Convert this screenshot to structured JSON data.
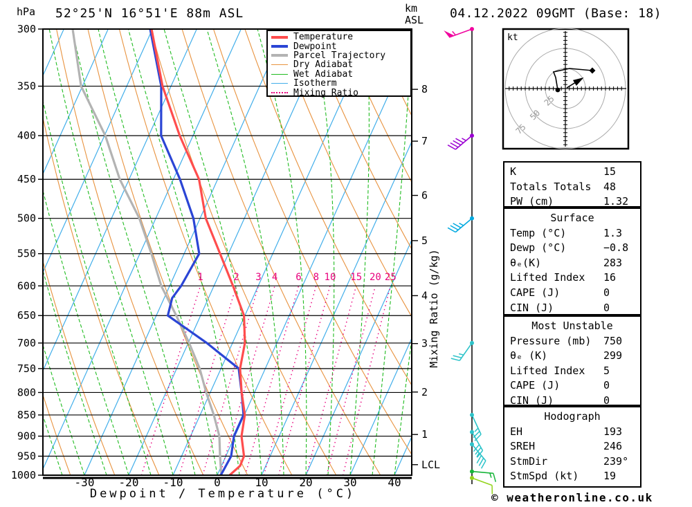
{
  "header": {
    "pressure_unit": "hPa",
    "station_title": "52°25'N 16°51'E 88m ASL",
    "altitude_unit_line1": "km",
    "altitude_unit_line2": "ASL",
    "datetime_title": "04.12.2022 09GMT (Base: 18)"
  },
  "colors": {
    "temperature": "#ff4d4d",
    "dewpoint": "#2b45d5",
    "parcel": "#b3b3b3",
    "dry_adiabat": "#e8923e",
    "wet_adiabat": "#1fbb1f",
    "isotherm": "#41aeea",
    "mixing_ratio": "#e8007d",
    "grid": "#000000",
    "ring": "#aaaaaa"
  },
  "legend": {
    "items": [
      {
        "label": "Temperature",
        "color": "#ff4d4d",
        "weight": 4,
        "dash": ""
      },
      {
        "label": "Dewpoint",
        "color": "#2b45d5",
        "weight": 4,
        "dash": ""
      },
      {
        "label": "Parcel Trajectory",
        "color": "#b3b3b3",
        "weight": 4,
        "dash": ""
      },
      {
        "label": "Dry Adiabat",
        "color": "#e8923e",
        "weight": 1.5,
        "dash": ""
      },
      {
        "label": "Wet Adiabat",
        "color": "#1fbb1f",
        "weight": 1.5,
        "dash": ""
      },
      {
        "label": "Isotherm",
        "color": "#41aeea",
        "weight": 1.5,
        "dash": ""
      },
      {
        "label": "Mixing Ratio",
        "color": "#e8007d",
        "weight": 1.5,
        "dash": "2,4"
      }
    ]
  },
  "axes": {
    "xlabel": "Dewpoint / Temperature (°C)",
    "mixing_ratio_axis_label": "Mixing Ratio (g/kg)",
    "lcl_label": "LCL"
  },
  "footer": {
    "copyright": "© weatheronline.co.uk"
  },
  "stats": {
    "tables": [
      {
        "name": "indices",
        "title": null,
        "rows": [
          {
            "label": "K",
            "value": "15"
          },
          {
            "label": "Totals Totals",
            "value": "48"
          },
          {
            "label": "PW (cm)",
            "value": "1.32"
          }
        ]
      },
      {
        "name": "surface",
        "title": "Surface",
        "rows": [
          {
            "label": "Temp (°C)",
            "value": "1.3"
          },
          {
            "label": "Dewp (°C)",
            "value": "−0.8"
          },
          {
            "label": "θₑ(K)",
            "value": "283"
          },
          {
            "label": "Lifted Index",
            "value": "16"
          },
          {
            "label": "CAPE (J)",
            "value": "0"
          },
          {
            "label": "CIN (J)",
            "value": "0"
          }
        ]
      },
      {
        "name": "most_unstable",
        "title": "Most Unstable",
        "rows": [
          {
            "label": "Pressure (mb)",
            "value": "750"
          },
          {
            "label": "θₑ (K)",
            "value": "299"
          },
          {
            "label": "Lifted Index",
            "value": "5"
          },
          {
            "label": "CAPE (J)",
            "value": "0"
          },
          {
            "label": "CIN (J)",
            "value": "0"
          }
        ]
      },
      {
        "name": "hodograph",
        "title": "Hodograph",
        "rows": [
          {
            "label": "EH",
            "value": "193"
          },
          {
            "label": "SREH",
            "value": "246"
          },
          {
            "label": "StmDir",
            "value": "239°"
          },
          {
            "label": "StmSpd (kt)",
            "value": "19"
          }
        ]
      }
    ]
  },
  "chart_data": {
    "type": "line",
    "subtype": "skewt_logp_sounding",
    "title": "52°25'N 16°51'E 88m ASL — 04.12.2022 09GMT (Base: 18)",
    "xlabel": "Dewpoint / Temperature (°C)",
    "x_ticks_c": [
      -30,
      -20,
      -10,
      0,
      10,
      20,
      30,
      40
    ],
    "pressure_ticks_hpa": [
      300,
      350,
      400,
      450,
      500,
      550,
      600,
      650,
      700,
      750,
      800,
      850,
      900,
      950,
      1000
    ],
    "pressure_range_hpa": [
      300,
      1000
    ],
    "temperature_profile_p_t": [
      [
        1000,
        2.8
      ],
      [
        975,
        4.2
      ],
      [
        950,
        4.1
      ],
      [
        900,
        1.5
      ],
      [
        850,
        0.1
      ],
      [
        800,
        -2.9
      ],
      [
        750,
        -5.7
      ],
      [
        700,
        -7.2
      ],
      [
        650,
        -10.2
      ],
      [
        600,
        -15.7
      ],
      [
        550,
        -21.9
      ],
      [
        500,
        -28.7
      ],
      [
        450,
        -34.2
      ],
      [
        400,
        -43.0
      ],
      [
        350,
        -51.9
      ],
      [
        300,
        -60.2
      ]
    ],
    "dewpoint_profile_p_t": [
      [
        1000,
        0.8
      ],
      [
        950,
        1.2
      ],
      [
        900,
        -0.2
      ],
      [
        850,
        -0.2
      ],
      [
        800,
        -2.9
      ],
      [
        750,
        -6.0
      ],
      [
        700,
        -15.8
      ],
      [
        650,
        -27.4
      ],
      [
        620,
        -28.2
      ],
      [
        600,
        -27.4
      ],
      [
        550,
        -26.6
      ],
      [
        500,
        -31.5
      ],
      [
        450,
        -38.5
      ],
      [
        400,
        -47.2
      ],
      [
        350,
        -52.2
      ],
      [
        300,
        -60.5
      ]
    ],
    "parcel_profile_p_t": [
      [
        1000,
        0.9
      ],
      [
        950,
        -1.3
      ],
      [
        900,
        -3.5
      ],
      [
        850,
        -6.9
      ],
      [
        800,
        -10.9
      ],
      [
        750,
        -14.8
      ],
      [
        700,
        -19.8
      ],
      [
        650,
        -25.5
      ],
      [
        600,
        -31.9
      ],
      [
        550,
        -37.4
      ],
      [
        500,
        -43.7
      ],
      [
        450,
        -52.1
      ],
      [
        400,
        -59.8
      ],
      [
        350,
        -70.3
      ],
      [
        300,
        -78.0
      ]
    ],
    "mixing_ratio_lines_gkg": [
      1,
      2,
      3,
      4,
      6,
      8,
      10,
      15,
      20,
      25
    ],
    "isotherm_step_c": 10,
    "dry_adiabat_step_k": 10,
    "wet_adiabat_step_c": 5,
    "km_asl_ticks": [
      {
        "label": "8",
        "p_hpa": 353
      },
      {
        "label": "7",
        "p_hpa": 406
      },
      {
        "label": "6",
        "p_hpa": 470
      },
      {
        "label": "5",
        "p_hpa": 531
      },
      {
        "label": "4",
        "p_hpa": 616
      },
      {
        "label": "3",
        "p_hpa": 701
      },
      {
        "label": "2",
        "p_hpa": 799
      },
      {
        "label": "1",
        "p_hpa": 896
      },
      {
        "label": "LCL",
        "p_hpa": 972
      }
    ],
    "wind_barbs": [
      {
        "p_hpa": 300,
        "speed_kt": 55,
        "dir_from_deg": 250,
        "color": "#f0059f"
      },
      {
        "p_hpa": 400,
        "speed_kt": 45,
        "dir_from_deg": 230,
        "color": "#9b00d3"
      },
      {
        "p_hpa": 500,
        "speed_kt": 35,
        "dir_from_deg": 230,
        "color": "#00a9e0"
      },
      {
        "p_hpa": 700,
        "speed_kt": 25,
        "dir_from_deg": 215,
        "color": "#2cc3c9"
      },
      {
        "p_hpa": 850,
        "speed_kt": 25,
        "dir_from_deg": 155,
        "color": "#2cc3c9"
      },
      {
        "p_hpa": 890,
        "speed_kt": 30,
        "dir_from_deg": 150,
        "color": "#2cc3c9"
      },
      {
        "p_hpa": 920,
        "speed_kt": 35,
        "dir_from_deg": 140,
        "color": "#2cc3c9"
      },
      {
        "p_hpa": 990,
        "speed_kt": 15,
        "dir_from_deg": 95,
        "color": "#17b53a"
      },
      {
        "p_hpa": 1005,
        "speed_kt": 10,
        "dir_from_deg": 110,
        "color": "#93d41b"
      }
    ],
    "hodograph": {
      "unit_label": "kt",
      "rings_kt": [
        25,
        50,
        75
      ],
      "trace_uv_kt": [
        [
          -9.5,
          -1.7
        ],
        [
          -12.1,
          13.8
        ],
        [
          -14.7,
          20.7
        ],
        [
          5.2,
          25.0
        ],
        [
          33.6,
          22.4
        ]
      ],
      "storm_motion_uv_kt": [
        16.3,
        9.8
      ],
      "storm_dir_deg": 239,
      "storm_speed_kt": 19
    }
  }
}
